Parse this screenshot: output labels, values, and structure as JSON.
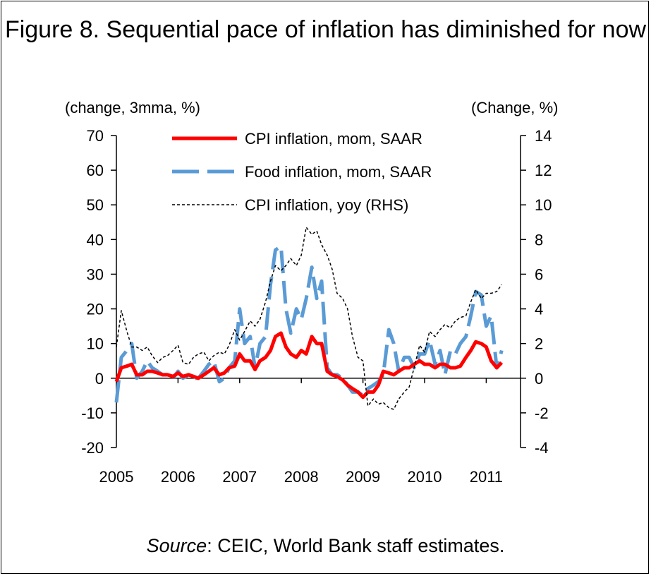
{
  "title": "Figure 8. Sequential pace of inflation has diminished for now",
  "source_label": "Source",
  "source_text": ": CEIC, World Bank staff estimates.",
  "chart_data": {
    "type": "line",
    "title": "Figure 8. Sequential pace of inflation has diminished for now",
    "ylabel_left": "(change, 3mma, %)",
    "ylabel_right": "(Change, %)",
    "ylim_left": [
      -20,
      70
    ],
    "ylim_right": [
      -4,
      14
    ],
    "yticks_left": [
      -20,
      -10,
      0,
      10,
      20,
      30,
      40,
      50,
      60,
      70
    ],
    "yticks_right": [
      -4,
      -2,
      0,
      2,
      4,
      6,
      8,
      10,
      12,
      14
    ],
    "x_tick_labels": [
      "2005",
      "2006",
      "2007",
      "2008",
      "2009",
      "2010",
      "2011"
    ],
    "x_start": 2005.0,
    "legend_position": "top-center",
    "colors": {
      "cpi_mom": "#ff0000",
      "food_mom": "#5b9bd5",
      "cpi_yoy": "#000000"
    },
    "series": [
      {
        "name": "CPI inflation, mom, SAAR",
        "axis": "left",
        "x": [
          2005.0,
          2005.08,
          2005.17,
          2005.25,
          2005.33,
          2005.42,
          2005.5,
          2005.58,
          2005.67,
          2005.75,
          2005.83,
          2005.92,
          2006.0,
          2006.08,
          2006.17,
          2006.25,
          2006.33,
          2006.42,
          2006.5,
          2006.58,
          2006.67,
          2006.75,
          2006.83,
          2006.92,
          2007.0,
          2007.08,
          2007.17,
          2007.25,
          2007.33,
          2007.42,
          2007.5,
          2007.58,
          2007.67,
          2007.75,
          2007.83,
          2007.92,
          2008.0,
          2008.08,
          2008.17,
          2008.25,
          2008.33,
          2008.42,
          2008.5,
          2008.58,
          2008.67,
          2008.75,
          2008.83,
          2008.92,
          2009.0,
          2009.08,
          2009.17,
          2009.25,
          2009.33,
          2009.42,
          2009.5,
          2009.58,
          2009.67,
          2009.75,
          2009.83,
          2009.92,
          2010.0,
          2010.08,
          2010.17,
          2010.25,
          2010.33,
          2010.42,
          2010.5,
          2010.58,
          2010.67,
          2010.75,
          2010.83,
          2010.92,
          2011.0,
          2011.08,
          2011.17,
          2011.25
        ],
        "values": [
          -1,
          3,
          3.5,
          4,
          1,
          1,
          2,
          2,
          1.5,
          1,
          1,
          0.5,
          1.5,
          0.5,
          1,
          0.5,
          0,
          1,
          2,
          3,
          1,
          1.5,
          3,
          3.5,
          7,
          5,
          5,
          2.5,
          5,
          6,
          8,
          12,
          13,
          9,
          7,
          6,
          8,
          7,
          12,
          10,
          10,
          2,
          1,
          0.5,
          -0.5,
          -2,
          -3,
          -4,
          -5.5,
          -4,
          -4,
          -2,
          2,
          1.5,
          1,
          2,
          3,
          3,
          4,
          5,
          4,
          4,
          3,
          4,
          4,
          3,
          3,
          3.5,
          6,
          8,
          10.5,
          10,
          9,
          5,
          3,
          4.5
        ]
      },
      {
        "name": "Food inflation, mom, SAAR",
        "axis": "left",
        "x": [
          2005.0,
          2005.08,
          2005.17,
          2005.25,
          2005.33,
          2005.42,
          2005.5,
          2005.58,
          2005.67,
          2005.75,
          2005.83,
          2005.92,
          2006.0,
          2006.08,
          2006.17,
          2006.25,
          2006.33,
          2006.42,
          2006.5,
          2006.58,
          2006.67,
          2006.75,
          2006.83,
          2006.92,
          2007.0,
          2007.08,
          2007.17,
          2007.25,
          2007.33,
          2007.42,
          2007.5,
          2007.58,
          2007.67,
          2007.75,
          2007.83,
          2007.92,
          2008.0,
          2008.08,
          2008.17,
          2008.25,
          2008.33,
          2008.42,
          2008.5,
          2008.58,
          2008.67,
          2008.75,
          2008.83,
          2008.92,
          2009.0,
          2009.08,
          2009.17,
          2009.25,
          2009.33,
          2009.42,
          2009.5,
          2009.58,
          2009.67,
          2009.75,
          2009.83,
          2009.92,
          2010.0,
          2010.08,
          2010.17,
          2010.25,
          2010.33,
          2010.42,
          2010.5,
          2010.58,
          2010.67,
          2010.75,
          2010.83,
          2010.92,
          2011.0,
          2011.08,
          2011.17,
          2011.25
        ],
        "values": [
          -7,
          6,
          8,
          10,
          0,
          2,
          5,
          3,
          2,
          1,
          1,
          0,
          2,
          0,
          1,
          0,
          0,
          2,
          4,
          5,
          -1,
          0,
          3,
          5,
          20,
          10,
          12,
          3,
          10,
          12,
          27,
          37,
          38,
          20,
          13,
          20,
          17,
          23,
          32,
          23,
          28,
          3,
          1,
          1,
          0,
          -2,
          -4,
          -4,
          -5,
          -3,
          -2,
          -1,
          1,
          14,
          10,
          2,
          6,
          6,
          3,
          7,
          7,
          11,
          4,
          8,
          1,
          8,
          7,
          10,
          12,
          18,
          25,
          24,
          15,
          18,
          3,
          8
        ]
      },
      {
        "name": "CPI inflation, yoy (RHS)",
        "axis": "right",
        "x": [
          2005.0,
          2005.08,
          2005.17,
          2005.25,
          2005.33,
          2005.42,
          2005.5,
          2005.58,
          2005.67,
          2005.75,
          2005.83,
          2005.92,
          2006.0,
          2006.08,
          2006.17,
          2006.25,
          2006.33,
          2006.42,
          2006.5,
          2006.58,
          2006.67,
          2006.75,
          2006.83,
          2006.92,
          2007.0,
          2007.08,
          2007.17,
          2007.25,
          2007.33,
          2007.42,
          2007.5,
          2007.58,
          2007.67,
          2007.75,
          2007.83,
          2007.92,
          2008.0,
          2008.08,
          2008.17,
          2008.25,
          2008.33,
          2008.42,
          2008.5,
          2008.58,
          2008.67,
          2008.75,
          2008.83,
          2008.92,
          2009.0,
          2009.08,
          2009.17,
          2009.25,
          2009.33,
          2009.42,
          2009.5,
          2009.58,
          2009.67,
          2009.75,
          2009.83,
          2009.92,
          2010.0,
          2010.08,
          2010.17,
          2010.25,
          2010.33,
          2010.42,
          2010.5,
          2010.58,
          2010.67,
          2010.75,
          2010.83,
          2010.92,
          2011.0,
          2011.08,
          2011.17,
          2011.25
        ],
        "values": [
          1.8,
          3.9,
          2.7,
          1.8,
          1.8,
          1.6,
          1.8,
          1.3,
          0.9,
          1.2,
          1.3,
          1.6,
          1.9,
          0.9,
          0.8,
          1.2,
          1.4,
          1.5,
          1.0,
          1.3,
          1.5,
          1.4,
          1.9,
          2.8,
          2.2,
          2.7,
          3.3,
          3.0,
          3.4,
          4.4,
          5.6,
          6.5,
          6.2,
          6.5,
          6.9,
          6.5,
          7.1,
          8.7,
          8.3,
          8.5,
          7.7,
          7.1,
          6.3,
          4.9,
          4.6,
          4.0,
          2.4,
          1.2,
          1.0,
          -1.6,
          -1.2,
          -1.5,
          -1.4,
          -1.7,
          -1.8,
          -1.2,
          -0.8,
          -0.5,
          0.6,
          1.9,
          1.5,
          2.7,
          2.4,
          2.8,
          3.1,
          2.9,
          3.3,
          3.5,
          3.6,
          4.4,
          5.1,
          4.6,
          4.9,
          4.9,
          5.0,
          5.4
        ]
      }
    ]
  }
}
